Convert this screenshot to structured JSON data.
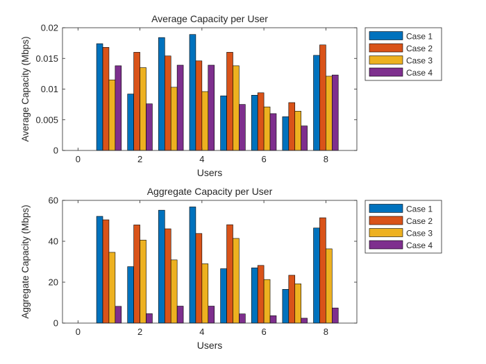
{
  "chart_data": [
    {
      "type": "bar",
      "title": "Average Capacity per User",
      "xlabel": "Users",
      "ylabel": "Average Capacity (Mbps)",
      "xlim": [
        -0.5,
        9
      ],
      "ylim": [
        0,
        0.02
      ],
      "xticks": [
        0,
        2,
        4,
        6,
        8
      ],
      "xtick_labels": [
        "0",
        "2",
        "4",
        "6",
        "8"
      ],
      "yticks": [
        0,
        0.005,
        0.01,
        0.015,
        0.02
      ],
      "ytick_labels": [
        "0",
        "0.005",
        "0.01",
        "0.015",
        "0.02"
      ],
      "categories": [
        1,
        2,
        3,
        4,
        5,
        6,
        7,
        8
      ],
      "grid": false,
      "legend_position": "outside-right",
      "series": [
        {
          "name": "Case 1",
          "color": "#0072BD",
          "values": [
            0.0174,
            0.0092,
            0.0184,
            0.0189,
            0.0089,
            0.009,
            0.0055,
            0.0155
          ]
        },
        {
          "name": "Case 2",
          "color": "#D95319",
          "values": [
            0.0168,
            0.016,
            0.0154,
            0.0146,
            0.016,
            0.0094,
            0.0078,
            0.0172
          ]
        },
        {
          "name": "Case 3",
          "color": "#EDB120",
          "values": [
            0.0115,
            0.0135,
            0.0103,
            0.0096,
            0.0138,
            0.0071,
            0.0064,
            0.0121
          ]
        },
        {
          "name": "Case 4",
          "color": "#7E2F8E",
          "values": [
            0.0138,
            0.0076,
            0.0139,
            0.0139,
            0.0075,
            0.006,
            0.004,
            0.0123
          ]
        }
      ]
    },
    {
      "type": "bar",
      "title": "Aggregate Capacity per User",
      "xlabel": "Users",
      "ylabel": "Aggregate Capacity (Mbps)",
      "xlim": [
        -0.5,
        9
      ],
      "ylim": [
        0,
        60
      ],
      "xticks": [
        0,
        2,
        4,
        6,
        8
      ],
      "xtick_labels": [
        "0",
        "2",
        "4",
        "6",
        "8"
      ],
      "yticks": [
        0,
        20,
        40,
        60
      ],
      "ytick_labels": [
        "0",
        "20",
        "40",
        "60"
      ],
      "categories": [
        1,
        2,
        3,
        4,
        5,
        6,
        7,
        8
      ],
      "grid": false,
      "legend_position": "outside-right",
      "series": [
        {
          "name": "Case 1",
          "color": "#0072BD",
          "values": [
            52.2,
            27.6,
            55.2,
            56.8,
            26.6,
            27.0,
            16.5,
            46.5
          ]
        },
        {
          "name": "Case 2",
          "color": "#D95319",
          "values": [
            50.5,
            48.0,
            46.1,
            43.8,
            48.1,
            28.2,
            23.4,
            51.5
          ]
        },
        {
          "name": "Case 3",
          "color": "#EDB120",
          "values": [
            34.6,
            40.6,
            30.9,
            29.0,
            41.4,
            21.3,
            19.2,
            36.3
          ]
        },
        {
          "name": "Case 4",
          "color": "#7E2F8E",
          "values": [
            8.2,
            4.6,
            8.3,
            8.3,
            4.5,
            3.6,
            2.4,
            7.4
          ]
        }
      ]
    }
  ]
}
